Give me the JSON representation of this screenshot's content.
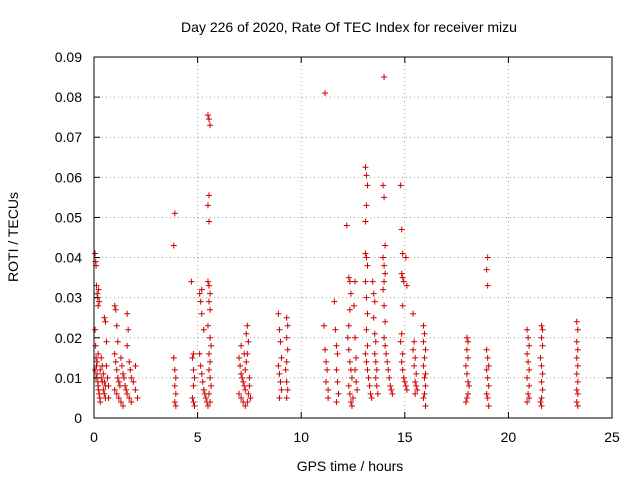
{
  "chart_data": {
    "type": "scatter",
    "title": "Day 226 of 2020, Rate Of TEC Index for receiver mizu",
    "xlabel": "GPS time / hours",
    "ylabel": "ROTI / TECUs",
    "xlim": [
      0,
      25
    ],
    "ylim": [
      0,
      0.09
    ],
    "x_ticks": [
      0,
      5,
      10,
      15,
      20,
      25
    ],
    "y_ticks": [
      0,
      0.01,
      0.02,
      0.03,
      0.04,
      0.05,
      0.06,
      0.07,
      0.08,
      0.09
    ],
    "x_tick_labels": [
      "0",
      "5",
      "10",
      "15",
      "20",
      "25"
    ],
    "y_tick_labels": [
      "0",
      "0.01",
      "0.02",
      "0.03",
      "0.04",
      "0.05",
      "0.06",
      "0.07",
      "0.08",
      "0.09"
    ],
    "grid": true,
    "marker": "+",
    "marker_color": "#cc0000",
    "points": [
      [
        0.05,
        0.041
      ],
      [
        0.08,
        0.039
      ],
      [
        0.1,
        0.038
      ],
      [
        0.12,
        0.033
      ],
      [
        0.15,
        0.031
      ],
      [
        0.18,
        0.03
      ],
      [
        0.2,
        0.028
      ],
      [
        0.22,
        0.032
      ],
      [
        0.25,
        0.029
      ],
      [
        0.05,
        0.022
      ],
      [
        0.08,
        0.018
      ],
      [
        0.1,
        0.015
      ],
      [
        0.12,
        0.013
      ],
      [
        0.15,
        0.011
      ],
      [
        0.18,
        0.009
      ],
      [
        0.2,
        0.008
      ],
      [
        0.22,
        0.007
      ],
      [
        0.25,
        0.006
      ],
      [
        0.28,
        0.005
      ],
      [
        0.3,
        0.004
      ],
      [
        0.05,
        0.012
      ],
      [
        0.1,
        0.01
      ],
      [
        0.15,
        0.014
      ],
      [
        0.2,
        0.016
      ],
      [
        0.3,
        0.012
      ],
      [
        0.35,
        0.01
      ],
      [
        0.4,
        0.009
      ],
      [
        0.45,
        0.007
      ],
      [
        0.5,
        0.006
      ],
      [
        0.55,
        0.005
      ],
      [
        0.35,
        0.015
      ],
      [
        0.4,
        0.013
      ],
      [
        0.45,
        0.011
      ],
      [
        0.5,
        0.009
      ],
      [
        0.55,
        0.008
      ],
      [
        0.5,
        0.025
      ],
      [
        0.55,
        0.024
      ],
      [
        0.6,
        0.019
      ],
      [
        0.6,
        0.013
      ],
      [
        0.65,
        0.01
      ],
      [
        0.7,
        0.008
      ],
      [
        0.7,
        0.005
      ],
      [
        1.0,
        0.028
      ],
      [
        1.05,
        0.027
      ],
      [
        1.1,
        0.023
      ],
      [
        1.15,
        0.019
      ],
      [
        1.0,
        0.016
      ],
      [
        1.05,
        0.014
      ],
      [
        1.1,
        0.012
      ],
      [
        1.15,
        0.01
      ],
      [
        1.2,
        0.009
      ],
      [
        1.25,
        0.008
      ],
      [
        1.0,
        0.007
      ],
      [
        1.1,
        0.006
      ],
      [
        1.2,
        0.005
      ],
      [
        1.3,
        0.004
      ],
      [
        1.4,
        0.003
      ],
      [
        1.3,
        0.015
      ],
      [
        1.35,
        0.013
      ],
      [
        1.4,
        0.011
      ],
      [
        1.45,
        0.01
      ],
      [
        1.5,
        0.008
      ],
      [
        1.55,
        0.007
      ],
      [
        1.6,
        0.006
      ],
      [
        1.7,
        0.005
      ],
      [
        1.6,
        0.026
      ],
      [
        1.65,
        0.022
      ],
      [
        1.6,
        0.018
      ],
      [
        1.7,
        0.014
      ],
      [
        1.75,
        0.012
      ],
      [
        1.8,
        0.01
      ],
      [
        1.9,
        0.009
      ],
      [
        2.0,
        0.007
      ],
      [
        2.1,
        0.005
      ],
      [
        2.0,
        0.013
      ],
      [
        1.8,
        0.004
      ],
      [
        3.9,
        0.051
      ],
      [
        3.85,
        0.043
      ],
      [
        3.85,
        0.015
      ],
      [
        3.9,
        0.012
      ],
      [
        3.95,
        0.01
      ],
      [
        3.9,
        0.008
      ],
      [
        3.95,
        0.006
      ],
      [
        3.9,
        0.004
      ],
      [
        3.95,
        0.003
      ],
      [
        4.7,
        0.034
      ],
      [
        4.8,
        0.016
      ],
      [
        4.75,
        0.015
      ],
      [
        4.8,
        0.012
      ],
      [
        4.85,
        0.01
      ],
      [
        4.8,
        0.008
      ],
      [
        4.75,
        0.005
      ],
      [
        4.8,
        0.004
      ],
      [
        4.85,
        0.003
      ],
      [
        5.1,
        0.031
      ],
      [
        5.2,
        0.032
      ],
      [
        5.15,
        0.029
      ],
      [
        5.2,
        0.026
      ],
      [
        5.3,
        0.022
      ],
      [
        5.1,
        0.016
      ],
      [
        5.15,
        0.013
      ],
      [
        5.2,
        0.011
      ],
      [
        5.25,
        0.009
      ],
      [
        5.3,
        0.007
      ],
      [
        5.35,
        0.006
      ],
      [
        5.4,
        0.005
      ],
      [
        5.45,
        0.004
      ],
      [
        5.5,
        0.003
      ],
      [
        5.5,
        0.0755
      ],
      [
        5.55,
        0.0745
      ],
      [
        5.6,
        0.073
      ],
      [
        5.55,
        0.0555
      ],
      [
        5.5,
        0.053
      ],
      [
        5.55,
        0.049
      ],
      [
        5.5,
        0.034
      ],
      [
        5.55,
        0.033
      ],
      [
        5.6,
        0.031
      ],
      [
        5.55,
        0.029
      ],
      [
        5.6,
        0.027
      ],
      [
        5.5,
        0.023
      ],
      [
        5.6,
        0.02
      ],
      [
        5.65,
        0.018
      ],
      [
        5.55,
        0.016
      ],
      [
        5.6,
        0.014
      ],
      [
        5.55,
        0.012
      ],
      [
        5.6,
        0.01
      ],
      [
        5.65,
        0.008
      ],
      [
        5.55,
        0.006
      ],
      [
        5.6,
        0.004
      ],
      [
        7.0,
        0.015
      ],
      [
        7.05,
        0.013
      ],
      [
        7.1,
        0.011
      ],
      [
        7.15,
        0.01
      ],
      [
        7.2,
        0.009
      ],
      [
        7.25,
        0.008
      ],
      [
        7.3,
        0.007
      ],
      [
        7.0,
        0.006
      ],
      [
        7.1,
        0.005
      ],
      [
        7.2,
        0.004
      ],
      [
        7.3,
        0.003
      ],
      [
        7.4,
        0.004
      ],
      [
        7.45,
        0.006
      ],
      [
        7.5,
        0.008
      ],
      [
        7.3,
        0.012
      ],
      [
        7.35,
        0.014
      ],
      [
        7.4,
        0.016
      ],
      [
        7.45,
        0.019
      ],
      [
        7.35,
        0.021
      ],
      [
        7.4,
        0.023
      ],
      [
        7.1,
        0.018
      ],
      [
        7.25,
        0.016
      ],
      [
        7.5,
        0.01
      ],
      [
        7.55,
        0.005
      ],
      [
        8.9,
        0.026
      ],
      [
        8.95,
        0.022
      ],
      [
        9.0,
        0.019
      ],
      [
        9.05,
        0.015
      ],
      [
        8.9,
        0.013
      ],
      [
        8.95,
        0.011
      ],
      [
        9.0,
        0.009
      ],
      [
        9.05,
        0.007
      ],
      [
        8.95,
        0.005
      ],
      [
        9.3,
        0.025
      ],
      [
        9.35,
        0.023
      ],
      [
        9.3,
        0.02
      ],
      [
        9.35,
        0.017
      ],
      [
        9.3,
        0.014
      ],
      [
        9.25,
        0.012
      ],
      [
        9.3,
        0.009
      ],
      [
        9.35,
        0.007
      ],
      [
        9.3,
        0.005
      ],
      [
        11.15,
        0.081
      ],
      [
        11.1,
        0.023
      ],
      [
        11.15,
        0.017
      ],
      [
        11.2,
        0.014
      ],
      [
        11.25,
        0.012
      ],
      [
        11.2,
        0.009
      ],
      [
        11.3,
        0.007
      ],
      [
        11.3,
        0.005
      ],
      [
        11.6,
        0.029
      ],
      [
        11.65,
        0.022
      ],
      [
        11.7,
        0.018
      ],
      [
        11.75,
        0.016
      ],
      [
        11.7,
        0.012
      ],
      [
        11.75,
        0.009
      ],
      [
        11.8,
        0.006
      ],
      [
        11.7,
        0.004
      ],
      [
        12.2,
        0.048
      ],
      [
        12.3,
        0.035
      ],
      [
        12.35,
        0.034
      ],
      [
        12.4,
        0.031
      ],
      [
        12.35,
        0.027
      ],
      [
        12.3,
        0.023
      ],
      [
        12.25,
        0.02
      ],
      [
        12.3,
        0.017
      ],
      [
        12.35,
        0.014
      ],
      [
        12.4,
        0.012
      ],
      [
        12.45,
        0.01
      ],
      [
        12.3,
        0.008
      ],
      [
        12.35,
        0.006
      ],
      [
        12.4,
        0.004
      ],
      [
        12.45,
        0.003
      ],
      [
        12.5,
        0.005
      ],
      [
        12.6,
        0.034
      ],
      [
        12.55,
        0.028
      ],
      [
        12.6,
        0.02
      ],
      [
        12.65,
        0.015
      ],
      [
        12.6,
        0.012
      ],
      [
        12.65,
        0.009
      ],
      [
        12.7,
        0.007
      ],
      [
        13.1,
        0.0625
      ],
      [
        13.15,
        0.0605
      ],
      [
        13.2,
        0.058
      ],
      [
        13.15,
        0.053
      ],
      [
        13.1,
        0.049
      ],
      [
        13.1,
        0.041
      ],
      [
        13.15,
        0.04
      ],
      [
        13.2,
        0.038
      ],
      [
        13.1,
        0.034
      ],
      [
        13.15,
        0.03
      ],
      [
        13.2,
        0.026
      ],
      [
        13.15,
        0.022
      ],
      [
        13.2,
        0.018
      ],
      [
        13.1,
        0.016
      ],
      [
        13.15,
        0.014
      ],
      [
        13.2,
        0.012
      ],
      [
        13.25,
        0.01
      ],
      [
        13.3,
        0.008
      ],
      [
        13.35,
        0.006
      ],
      [
        13.4,
        0.005
      ],
      [
        13.45,
        0.034
      ],
      [
        13.5,
        0.031
      ],
      [
        13.55,
        0.029
      ],
      [
        13.5,
        0.025
      ],
      [
        13.55,
        0.021
      ],
      [
        13.6,
        0.019
      ],
      [
        13.55,
        0.016
      ],
      [
        13.6,
        0.014
      ],
      [
        13.65,
        0.012
      ],
      [
        13.6,
        0.01
      ],
      [
        13.65,
        0.008
      ],
      [
        13.7,
        0.006
      ],
      [
        14.0,
        0.085
      ],
      [
        13.95,
        0.058
      ],
      [
        14.0,
        0.055
      ],
      [
        14.05,
        0.043
      ],
      [
        13.95,
        0.04
      ],
      [
        14.0,
        0.038
      ],
      [
        14.05,
        0.036
      ],
      [
        14.0,
        0.034
      ],
      [
        13.95,
        0.032
      ],
      [
        14.0,
        0.028
      ],
      [
        14.05,
        0.024
      ],
      [
        14.0,
        0.02
      ],
      [
        14.05,
        0.018
      ],
      [
        14.1,
        0.016
      ],
      [
        14.15,
        0.014
      ],
      [
        14.2,
        0.012
      ],
      [
        14.25,
        0.01
      ],
      [
        14.3,
        0.008
      ],
      [
        14.35,
        0.007
      ],
      [
        14.4,
        0.006
      ],
      [
        14.8,
        0.058
      ],
      [
        14.85,
        0.047
      ],
      [
        14.9,
        0.041
      ],
      [
        14.85,
        0.036
      ],
      [
        14.9,
        0.035
      ],
      [
        14.95,
        0.034
      ],
      [
        15.05,
        0.04
      ],
      [
        15.1,
        0.033
      ],
      [
        14.9,
        0.028
      ],
      [
        14.85,
        0.021
      ],
      [
        14.8,
        0.019
      ],
      [
        14.9,
        0.016
      ],
      [
        14.85,
        0.014
      ],
      [
        14.9,
        0.012
      ],
      [
        14.95,
        0.01
      ],
      [
        15.0,
        0.009
      ],
      [
        15.05,
        0.008
      ],
      [
        15.1,
        0.007
      ],
      [
        15.4,
        0.026
      ],
      [
        15.45,
        0.019
      ],
      [
        15.4,
        0.017
      ],
      [
        15.5,
        0.015
      ],
      [
        15.45,
        0.013
      ],
      [
        15.55,
        0.011
      ],
      [
        15.5,
        0.009
      ],
      [
        15.55,
        0.008
      ],
      [
        15.6,
        0.007
      ],
      [
        15.5,
        0.006
      ],
      [
        15.9,
        0.023
      ],
      [
        15.95,
        0.021
      ],
      [
        15.9,
        0.019
      ],
      [
        16.0,
        0.017
      ],
      [
        15.95,
        0.015
      ],
      [
        15.9,
        0.013
      ],
      [
        16.0,
        0.011
      ],
      [
        15.95,
        0.01
      ],
      [
        16.0,
        0.008
      ],
      [
        15.95,
        0.006
      ],
      [
        15.9,
        0.005
      ],
      [
        16.0,
        0.003
      ],
      [
        18.0,
        0.02
      ],
      [
        18.05,
        0.019
      ],
      [
        18.0,
        0.017
      ],
      [
        18.05,
        0.015
      ],
      [
        17.95,
        0.013
      ],
      [
        18.0,
        0.011
      ],
      [
        18.05,
        0.009
      ],
      [
        18.1,
        0.008
      ],
      [
        18.05,
        0.006
      ],
      [
        18.0,
        0.005
      ],
      [
        17.95,
        0.004
      ],
      [
        19.0,
        0.04
      ],
      [
        18.95,
        0.037
      ],
      [
        19.0,
        0.033
      ],
      [
        18.95,
        0.017
      ],
      [
        19.0,
        0.015
      ],
      [
        19.05,
        0.013
      ],
      [
        18.95,
        0.012
      ],
      [
        19.0,
        0.01
      ],
      [
        19.05,
        0.008
      ],
      [
        18.95,
        0.006
      ],
      [
        19.0,
        0.005
      ],
      [
        19.05,
        0.003
      ],
      [
        20.9,
        0.022
      ],
      [
        20.95,
        0.02
      ],
      [
        21.0,
        0.018
      ],
      [
        20.9,
        0.016
      ],
      [
        20.95,
        0.014
      ],
      [
        21.0,
        0.012
      ],
      [
        20.9,
        0.01
      ],
      [
        21.0,
        0.008
      ],
      [
        20.95,
        0.006
      ],
      [
        21.0,
        0.005
      ],
      [
        20.9,
        0.004
      ],
      [
        21.6,
        0.023
      ],
      [
        21.65,
        0.022
      ],
      [
        21.6,
        0.02
      ],
      [
        21.65,
        0.018
      ],
      [
        21.55,
        0.015
      ],
      [
        21.6,
        0.013
      ],
      [
        21.65,
        0.011
      ],
      [
        21.6,
        0.009
      ],
      [
        21.65,
        0.007
      ],
      [
        21.6,
        0.005
      ],
      [
        21.55,
        0.004
      ],
      [
        21.6,
        0.003
      ],
      [
        23.3,
        0.024
      ],
      [
        23.35,
        0.022
      ],
      [
        23.3,
        0.019
      ],
      [
        23.35,
        0.017
      ],
      [
        23.3,
        0.015
      ],
      [
        23.35,
        0.013
      ],
      [
        23.3,
        0.011
      ],
      [
        23.35,
        0.009
      ],
      [
        23.3,
        0.007
      ],
      [
        23.35,
        0.006
      ],
      [
        23.3,
        0.004
      ],
      [
        23.35,
        0.003
      ]
    ]
  }
}
